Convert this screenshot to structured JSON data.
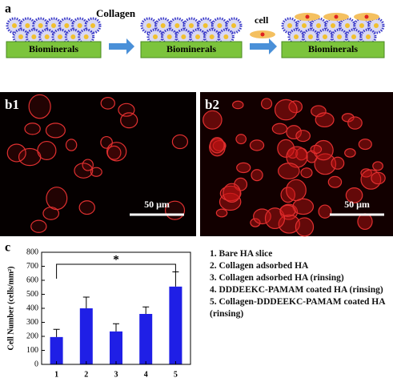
{
  "panel_a": {
    "label": "a",
    "collagen_label": "Collagen",
    "cell_label": "cell",
    "substrate_labels": [
      "Biominerals",
      "Biominerals",
      "Biominerals"
    ]
  },
  "panel_b": [
    {
      "label": "b1",
      "scale_bar": "50 μm"
    },
    {
      "label": "b2",
      "scale_bar": "50 μm"
    }
  ],
  "chart_data": {
    "type": "bar",
    "panel_label": "c",
    "y_label": "Cell Number (cells/mm²)",
    "categories": [
      "1",
      "2",
      "3",
      "4",
      "5"
    ],
    "values": [
      195,
      400,
      235,
      360,
      555
    ],
    "errors": [
      55,
      80,
      55,
      50,
      105
    ],
    "color": "#1f1fe6",
    "ylim": [
      0,
      800
    ],
    "yticks": [
      0,
      100,
      200,
      300,
      400,
      500,
      600,
      700,
      800
    ],
    "annotation": "*"
  },
  "legend_list": [
    "1. Bare HA slice",
    "2. Collagen adsorbed HA",
    "3. Collagen adsorbed HA (rinsing)",
    "4. DDDEEKC-PAMAM coated HA (rinsing)",
    "5. Collagen-DDDEEKC-PAMAM coated HA (rinsing)"
  ]
}
